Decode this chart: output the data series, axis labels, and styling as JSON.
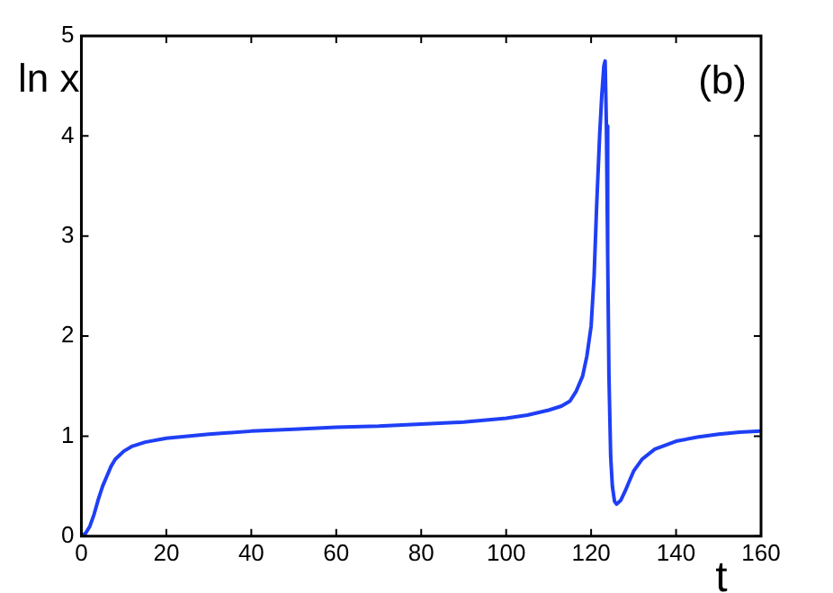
{
  "chart_data": {
    "type": "line",
    "xlabel": "t",
    "ylabel": "ln x",
    "annotations": [
      "(b)"
    ],
    "xlim": [
      0,
      160
    ],
    "xticks": [
      0,
      20,
      40,
      60,
      80,
      100,
      120,
      140,
      160
    ],
    "ylim": [
      0,
      5
    ],
    "yticks": [
      0,
      1,
      2,
      3,
      4,
      5
    ],
    "grid": false,
    "legend": false,
    "marker": "none",
    "line_style": "solid",
    "series": [
      {
        "color": "#1f3ff5",
        "x": [
          0,
          1,
          2,
          3,
          4,
          5,
          6,
          7,
          8,
          10,
          12,
          15,
          20,
          25,
          30,
          40,
          50,
          60,
          70,
          80,
          90,
          100,
          105,
          110,
          113,
          115,
          116.5,
          118,
          119,
          120,
          120.7,
          121.3,
          122,
          122.5,
          123,
          123.3,
          123.6,
          123.9,
          124.2,
          124.6,
          125,
          125.5,
          126,
          127,
          128,
          129,
          130,
          132,
          135,
          140,
          145,
          150,
          155,
          160
        ],
        "values": [
          0,
          0.03,
          0.1,
          0.22,
          0.37,
          0.5,
          0.6,
          0.7,
          0.77,
          0.85,
          0.9,
          0.94,
          0.98,
          1.0,
          1.02,
          1.05,
          1.07,
          1.09,
          1.1,
          1.12,
          1.14,
          1.18,
          1.21,
          1.26,
          1.3,
          1.35,
          1.45,
          1.6,
          1.8,
          2.1,
          2.6,
          3.3,
          4.0,
          4.4,
          4.7,
          4.75,
          4.1,
          2.8,
          1.6,
          0.8,
          0.5,
          0.35,
          0.32,
          0.36,
          0.45,
          0.55,
          0.65,
          0.77,
          0.87,
          0.95,
          0.99,
          1.02,
          1.04,
          1.05
        ]
      }
    ]
  }
}
